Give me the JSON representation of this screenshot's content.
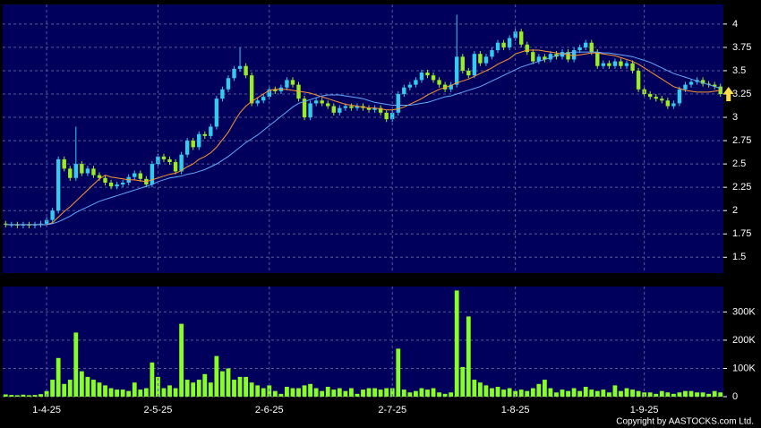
{
  "chart_data": [
    {
      "type": "candlestick",
      "open": [
        1.86,
        1.85,
        1.85,
        1.84,
        1.85,
        1.84,
        1.85,
        1.86,
        1.9,
        2.0,
        2.55,
        2.45,
        2.35,
        2.5,
        2.4,
        2.45,
        2.38,
        2.35,
        2.3,
        2.26,
        2.28,
        2.3,
        2.36,
        2.4,
        2.34,
        2.28,
        2.5,
        2.58,
        2.55,
        2.52,
        2.42,
        2.6,
        2.75,
        2.68,
        2.82,
        2.8,
        2.9,
        3.2,
        3.3,
        3.42,
        3.52,
        3.55,
        3.45,
        3.15,
        3.18,
        3.22,
        3.3,
        3.28,
        3.32,
        3.4,
        3.35,
        3.2,
        3.0,
        3.15,
        3.18,
        3.15,
        3.12,
        3.05,
        3.1,
        3.12,
        3.1,
        3.12,
        3.1,
        3.08,
        3.1,
        3.05,
        2.98,
        3.05,
        3.25,
        3.32,
        3.35,
        3.4,
        3.48,
        3.45,
        3.4,
        3.35,
        3.3,
        3.35,
        3.65,
        3.5,
        3.45,
        3.68,
        3.58,
        3.65,
        3.72,
        3.8,
        3.75,
        3.85,
        3.92,
        3.78,
        3.7,
        3.6,
        3.65,
        3.62,
        3.68,
        3.65,
        3.7,
        3.62,
        3.72,
        3.75,
        3.8,
        3.7,
        3.55,
        3.58,
        3.55,
        3.6,
        3.55,
        3.58,
        3.5,
        3.3,
        3.25,
        3.22,
        3.2,
        3.18,
        3.12,
        3.15,
        3.3,
        3.35,
        3.38,
        3.4,
        3.36,
        3.35,
        3.33
      ],
      "high": [
        1.89,
        1.88,
        1.88,
        1.88,
        1.88,
        1.88,
        1.89,
        1.93,
        2.03,
        2.58,
        2.58,
        2.48,
        2.9,
        2.53,
        2.48,
        2.48,
        2.41,
        2.38,
        2.33,
        2.31,
        2.33,
        2.39,
        2.43,
        2.43,
        2.37,
        2.53,
        2.61,
        2.61,
        2.58,
        2.55,
        2.63,
        2.78,
        2.78,
        2.85,
        2.85,
        2.93,
        3.23,
        3.33,
        3.45,
        3.55,
        3.75,
        3.58,
        3.48,
        3.21,
        3.25,
        3.33,
        3.33,
        3.35,
        3.43,
        3.43,
        3.38,
        3.23,
        3.18,
        3.21,
        3.21,
        3.18,
        3.15,
        3.13,
        3.15,
        3.15,
        3.15,
        3.15,
        3.13,
        3.13,
        3.13,
        3.08,
        3.08,
        3.28,
        3.35,
        3.38,
        3.43,
        3.51,
        3.51,
        3.48,
        3.43,
        3.38,
        3.38,
        4.1,
        3.68,
        3.53,
        3.71,
        3.71,
        3.68,
        3.75,
        3.83,
        3.83,
        3.88,
        3.95,
        3.95,
        3.81,
        3.73,
        3.68,
        3.68,
        3.71,
        3.71,
        3.73,
        3.73,
        3.75,
        3.78,
        3.83,
        3.83,
        3.73,
        3.61,
        3.61,
        3.63,
        3.63,
        3.61,
        3.61,
        3.53,
        3.33,
        3.28,
        3.25,
        3.23,
        3.21,
        3.18,
        3.33,
        3.38,
        3.41,
        3.43,
        3.43,
        3.39,
        3.38,
        3.36
      ],
      "low": [
        1.82,
        1.82,
        1.81,
        1.81,
        1.81,
        1.81,
        1.82,
        1.83,
        1.87,
        1.97,
        2.42,
        2.32,
        2.32,
        2.37,
        2.37,
        2.35,
        2.32,
        2.27,
        2.23,
        2.23,
        2.25,
        2.27,
        2.33,
        2.31,
        2.25,
        2.25,
        2.47,
        2.52,
        2.49,
        2.39,
        2.39,
        2.57,
        2.65,
        2.65,
        2.77,
        2.77,
        2.87,
        3.17,
        3.27,
        3.39,
        3.49,
        3.42,
        3.12,
        3.12,
        3.15,
        3.19,
        3.25,
        3.25,
        3.29,
        3.32,
        3.17,
        2.97,
        2.97,
        3.12,
        3.12,
        3.09,
        3.02,
        3.02,
        3.07,
        3.07,
        3.07,
        3.07,
        3.05,
        3.05,
        3.02,
        2.95,
        2.95,
        3.02,
        3.22,
        3.29,
        3.32,
        3.37,
        3.42,
        3.37,
        3.32,
        3.27,
        3.27,
        3.32,
        3.47,
        3.42,
        3.42,
        3.55,
        3.55,
        3.62,
        3.69,
        3.72,
        3.72,
        3.82,
        3.75,
        3.67,
        3.57,
        3.57,
        3.59,
        3.59,
        3.62,
        3.62,
        3.59,
        3.59,
        3.69,
        3.72,
        3.67,
        3.52,
        3.52,
        3.52,
        3.52,
        3.52,
        3.52,
        3.47,
        3.27,
        3.22,
        3.19,
        3.17,
        3.15,
        3.09,
        3.09,
        3.12,
        3.27,
        3.32,
        3.35,
        3.33,
        3.32,
        3.3,
        3.22
      ],
      "close": [
        1.85,
        1.85,
        1.84,
        1.85,
        1.84,
        1.85,
        1.86,
        1.9,
        2.0,
        2.55,
        2.45,
        2.35,
        2.5,
        2.4,
        2.45,
        2.38,
        2.35,
        2.3,
        2.26,
        2.28,
        2.3,
        2.36,
        2.4,
        2.34,
        2.28,
        2.5,
        2.58,
        2.55,
        2.52,
        2.42,
        2.6,
        2.75,
        2.68,
        2.82,
        2.8,
        2.9,
        3.2,
        3.3,
        3.42,
        3.52,
        3.55,
        3.45,
        3.15,
        3.18,
        3.22,
        3.3,
        3.28,
        3.32,
        3.4,
        3.35,
        3.2,
        3.0,
        3.15,
        3.18,
        3.15,
        3.12,
        3.05,
        3.1,
        3.12,
        3.1,
        3.12,
        3.1,
        3.08,
        3.1,
        3.05,
        2.98,
        3.05,
        3.25,
        3.32,
        3.35,
        3.4,
        3.48,
        3.45,
        3.4,
        3.35,
        3.3,
        3.35,
        3.65,
        3.5,
        3.45,
        3.68,
        3.58,
        3.65,
        3.72,
        3.8,
        3.75,
        3.85,
        3.92,
        3.78,
        3.7,
        3.6,
        3.65,
        3.62,
        3.68,
        3.65,
        3.7,
        3.62,
        3.72,
        3.75,
        3.8,
        3.7,
        3.55,
        3.58,
        3.55,
        3.6,
        3.55,
        3.58,
        3.5,
        3.3,
        3.25,
        3.22,
        3.2,
        3.18,
        3.12,
        3.15,
        3.3,
        3.35,
        3.38,
        3.4,
        3.36,
        3.35,
        3.33,
        3.25
      ],
      "up_color": "#33ccee",
      "down_color": "#99ee22",
      "series": [
        {
          "color": "#ff9933",
          "values": [
            1.85,
            1.85,
            1.85,
            1.85,
            1.85,
            1.85,
            1.85,
            1.85,
            1.87,
            1.93,
            1.99,
            2.04,
            2.1,
            2.16,
            2.22,
            2.28,
            2.34,
            2.38,
            2.36,
            2.35,
            2.34,
            2.33,
            2.33,
            2.32,
            2.31,
            2.33,
            2.35,
            2.37,
            2.39,
            2.4,
            2.43,
            2.47,
            2.5,
            2.55,
            2.58,
            2.62,
            2.68,
            2.76,
            2.84,
            2.95,
            3.05,
            3.12,
            3.17,
            3.21,
            3.25,
            3.29,
            3.3,
            3.3,
            3.3,
            3.29,
            3.28,
            3.27,
            3.26,
            3.24,
            3.22,
            3.2,
            3.18,
            3.16,
            3.14,
            3.13,
            3.12,
            3.11,
            3.1,
            3.1,
            3.09,
            3.08,
            3.08,
            3.09,
            3.11,
            3.14,
            3.17,
            3.2,
            3.24,
            3.27,
            3.3,
            3.32,
            3.34,
            3.37,
            3.39,
            3.41,
            3.44,
            3.47,
            3.5,
            3.53,
            3.57,
            3.6,
            3.63,
            3.68,
            3.7,
            3.72,
            3.72,
            3.72,
            3.71,
            3.7,
            3.69,
            3.68,
            3.67,
            3.66,
            3.67,
            3.68,
            3.69,
            3.69,
            3.68,
            3.67,
            3.66,
            3.64,
            3.62,
            3.6,
            3.57,
            3.53,
            3.49,
            3.45,
            3.41,
            3.37,
            3.33,
            3.31,
            3.29,
            3.28,
            3.27,
            3.27,
            3.27,
            3.28,
            3.29
          ]
        },
        {
          "color": "#66aaff",
          "values": [
            1.85,
            1.85,
            1.85,
            1.85,
            1.85,
            1.85,
            1.85,
            1.85,
            1.86,
            1.88,
            1.91,
            1.94,
            1.98,
            2.01,
            2.04,
            2.07,
            2.1,
            2.12,
            2.14,
            2.16,
            2.18,
            2.2,
            2.22,
            2.24,
            2.26,
            2.28,
            2.31,
            2.33,
            2.35,
            2.36,
            2.37,
            2.39,
            2.4,
            2.42,
            2.44,
            2.47,
            2.5,
            2.54,
            2.58,
            2.63,
            2.68,
            2.73,
            2.77,
            2.81,
            2.86,
            2.91,
            2.96,
            3.01,
            3.06,
            3.11,
            3.15,
            3.17,
            3.19,
            3.21,
            3.23,
            3.24,
            3.24,
            3.24,
            3.23,
            3.22,
            3.21,
            3.2,
            3.18,
            3.16,
            3.15,
            3.14,
            3.13,
            3.13,
            3.13,
            3.13,
            3.14,
            3.15,
            3.16,
            3.18,
            3.2,
            3.22,
            3.23,
            3.25,
            3.27,
            3.29,
            3.31,
            3.33,
            3.36,
            3.39,
            3.42,
            3.45,
            3.48,
            3.51,
            3.54,
            3.56,
            3.58,
            3.6,
            3.62,
            3.64,
            3.66,
            3.68,
            3.69,
            3.7,
            3.7,
            3.7,
            3.7,
            3.7,
            3.69,
            3.69,
            3.68,
            3.67,
            3.66,
            3.65,
            3.63,
            3.61,
            3.59,
            3.56,
            3.53,
            3.5,
            3.47,
            3.45,
            3.43,
            3.41,
            3.39,
            3.37,
            3.35,
            3.33,
            3.31
          ]
        }
      ],
      "ylim": [
        1.33,
        4.21
      ],
      "yticks": [
        1.5,
        1.75,
        2,
        2.25,
        2.5,
        2.75,
        3,
        3.25,
        3.5,
        3.75,
        4
      ],
      "grid": true
    },
    {
      "type": "bar",
      "categories": [
        null,
        null,
        null,
        null,
        null,
        null,
        null,
        "1-4-25",
        null,
        null,
        null,
        null,
        null,
        null,
        null,
        null,
        null,
        null,
        null,
        null,
        null,
        null,
        null,
        null,
        null,
        null,
        "2-5-25",
        null,
        null,
        null,
        null,
        null,
        null,
        null,
        null,
        null,
        null,
        null,
        null,
        null,
        null,
        null,
        null,
        null,
        null,
        "2-6-25",
        null,
        null,
        null,
        null,
        null,
        null,
        null,
        null,
        null,
        null,
        null,
        null,
        null,
        null,
        null,
        null,
        null,
        null,
        null,
        null,
        "2-7-25",
        null,
        null,
        null,
        null,
        null,
        null,
        null,
        null,
        null,
        null,
        null,
        null,
        null,
        null,
        null,
        null,
        null,
        null,
        null,
        null,
        "1-8-25",
        null,
        null,
        null,
        null,
        null,
        null,
        null,
        null,
        null,
        null,
        null,
        null,
        null,
        null,
        null,
        null,
        null,
        null,
        null,
        null,
        null,
        "1-9-25",
        null,
        null,
        null,
        null,
        null,
        null,
        null,
        null,
        null,
        null,
        null,
        null,
        null
      ],
      "values": [
        8000,
        6000,
        5000,
        7000,
        5000,
        6000,
        9000,
        20000,
        60000,
        137000,
        45000,
        60000,
        227000,
        90000,
        70000,
        60000,
        50000,
        40000,
        30000,
        25000,
        25000,
        20000,
        50000,
        25000,
        30000,
        121000,
        70000,
        30000,
        40000,
        30000,
        258000,
        60000,
        50000,
        60000,
        80000,
        50000,
        144000,
        90000,
        100000,
        60000,
        70000,
        70000,
        50000,
        40000,
        30000,
        40000,
        20000,
        10000,
        35000,
        30000,
        30000,
        40000,
        45000,
        30000,
        20000,
        35000,
        25000,
        30000,
        20000,
        30000,
        10000,
        25000,
        30000,
        30000,
        25000,
        30000,
        30000,
        170000,
        25000,
        15000,
        20000,
        30000,
        25000,
        30000,
        15000,
        10000,
        15000,
        376000,
        105000,
        284000,
        60000,
        50000,
        40000,
        30000,
        35000,
        25000,
        30000,
        20000,
        25000,
        20000,
        30000,
        45000,
        60000,
        30000,
        15000,
        25000,
        20000,
        30000,
        20000,
        35000,
        25000,
        20000,
        25000,
        15000,
        40000,
        20000,
        30000,
        25000,
        20000,
        15000,
        15000,
        10000,
        20000,
        15000,
        10000,
        15000,
        20000,
        20000,
        15000,
        15000,
        10000,
        20000,
        15000
      ],
      "color": "#88ff22",
      "ylim": [
        0,
        390000
      ],
      "yticks": [
        0,
        {
          "value": 100000,
          "label": "100K"
        },
        {
          "value": 200000,
          "label": "200K"
        },
        {
          "value": 300000,
          "label": "300K"
        }
      ],
      "grid": true
    }
  ],
  "copyright": "Copyright by AASTOCKS.com Ltd."
}
